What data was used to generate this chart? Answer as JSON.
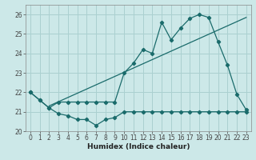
{
  "xlabel": "Humidex (Indice chaleur)",
  "background_color": "#cce8e8",
  "grid_color": "#aad0d0",
  "line_color": "#1a6b6b",
  "xlim": [
    -0.5,
    23.5
  ],
  "ylim": [
    20.0,
    26.5
  ],
  "yticks": [
    20,
    21,
    22,
    23,
    24,
    25,
    26
  ],
  "xticks": [
    0,
    1,
    2,
    3,
    4,
    5,
    6,
    7,
    8,
    9,
    10,
    11,
    12,
    13,
    14,
    15,
    16,
    17,
    18,
    19,
    20,
    21,
    22,
    23
  ],
  "series_low_x": [
    0,
    1,
    2,
    3,
    4,
    5,
    6,
    7,
    8,
    9,
    10,
    11,
    12,
    13,
    14,
    15,
    16,
    17,
    18,
    19,
    20,
    21,
    22,
    23
  ],
  "series_low_y": [
    22.0,
    21.6,
    21.2,
    20.9,
    20.8,
    20.6,
    20.6,
    20.3,
    20.6,
    20.7,
    21.0,
    21.0,
    21.0,
    21.0,
    21.0,
    21.0,
    21.0,
    21.0,
    21.0,
    21.0,
    21.0,
    21.0,
    21.0,
    21.0
  ],
  "series_main_x": [
    0,
    1,
    2,
    3,
    4,
    5,
    6,
    7,
    8,
    9,
    10,
    11,
    12,
    13,
    14,
    15,
    16,
    17,
    18,
    19,
    20,
    21,
    22,
    23
  ],
  "series_main_y": [
    22.0,
    21.6,
    21.2,
    21.5,
    21.5,
    21.5,
    21.5,
    21.5,
    21.5,
    21.5,
    23.0,
    23.5,
    24.2,
    24.0,
    25.6,
    24.7,
    25.3,
    25.8,
    26.0,
    25.85,
    24.6,
    23.4,
    21.9,
    21.1
  ],
  "series_trend_x": [
    2,
    23
  ],
  "series_trend_y": [
    21.3,
    25.85
  ],
  "marker": "D",
  "markersize": 2.2,
  "linewidth": 0.9,
  "tick_labelsize": 5.5,
  "xlabel_fontsize": 6.5
}
